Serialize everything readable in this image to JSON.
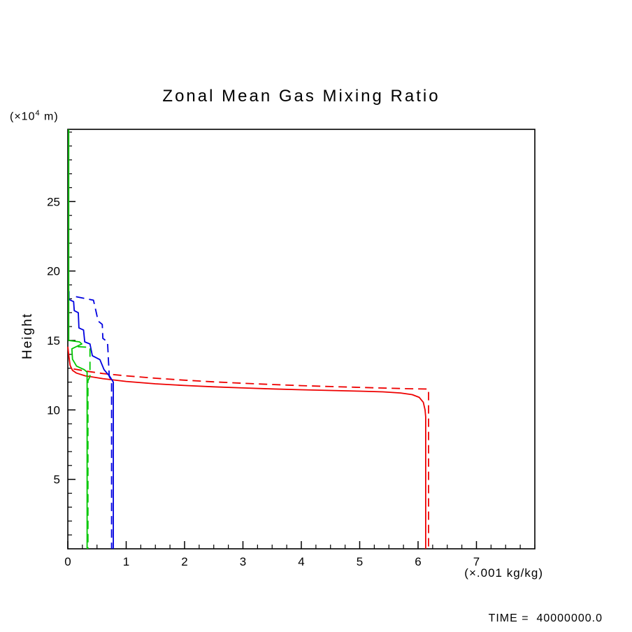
{
  "chart_data": {
    "type": "line",
    "title": "Zonal Mean Gas Mixing Ratio",
    "y_unit_prefix": "(×10",
    "y_unit_sup": "4",
    "y_unit_suffix": " m)",
    "ylabel": "Height",
    "xlabel": "(×.001 kg/kg)",
    "footer": "TIME =  40000000.0",
    "xlim": [
      0,
      8
    ],
    "ylim": [
      0,
      30.2
    ],
    "x_ticks": [
      0,
      1,
      2,
      3,
      4,
      5,
      6,
      7
    ],
    "y_ticks": [
      5,
      10,
      15,
      20,
      25
    ],
    "x_minor_step": 0.25,
    "y_minor_step": 1,
    "axis_color": "#000000",
    "legend": "none",
    "grid": false,
    "series": [
      {
        "name": "red-solid",
        "color": "#ee0000",
        "dash": "solid",
        "points": [
          [
            0.0,
            14.55
          ],
          [
            0.02,
            13.8
          ],
          [
            0.04,
            13.2
          ],
          [
            0.08,
            12.85
          ],
          [
            0.15,
            12.65
          ],
          [
            0.3,
            12.45
          ],
          [
            0.6,
            12.25
          ],
          [
            1.0,
            12.05
          ],
          [
            1.5,
            11.88
          ],
          [
            2.0,
            11.76
          ],
          [
            2.5,
            11.66
          ],
          [
            3.0,
            11.58
          ],
          [
            3.5,
            11.51
          ],
          [
            4.0,
            11.45
          ],
          [
            4.5,
            11.4
          ],
          [
            5.0,
            11.35
          ],
          [
            5.4,
            11.3
          ],
          [
            5.7,
            11.22
          ],
          [
            5.9,
            11.1
          ],
          [
            6.02,
            10.9
          ],
          [
            6.09,
            10.55
          ],
          [
            6.12,
            10.0
          ],
          [
            6.13,
            9.5
          ],
          [
            6.13,
            0.0
          ]
        ]
      },
      {
        "name": "red-dashed",
        "color": "#ee0000",
        "dash": "dashed",
        "points": [
          [
            0.1,
            12.95
          ],
          [
            0.3,
            12.8
          ],
          [
            0.6,
            12.62
          ],
          [
            1.0,
            12.45
          ],
          [
            1.5,
            12.28
          ],
          [
            2.0,
            12.14
          ],
          [
            2.5,
            12.02
          ],
          [
            3.0,
            11.92
          ],
          [
            3.5,
            11.83
          ],
          [
            4.0,
            11.75
          ],
          [
            4.5,
            11.68
          ],
          [
            5.0,
            11.62
          ],
          [
            5.5,
            11.56
          ],
          [
            5.9,
            11.52
          ],
          [
            6.18,
            11.5
          ],
          [
            6.18,
            0.0
          ]
        ]
      },
      {
        "name": "blue-solid",
        "color": "#0000e0",
        "dash": "solid",
        "points": [
          [
            0.02,
            18.55
          ],
          [
            0.02,
            17.95
          ],
          [
            0.1,
            17.8
          ],
          [
            0.11,
            17.15
          ],
          [
            0.18,
            17.0
          ],
          [
            0.19,
            15.9
          ],
          [
            0.27,
            15.75
          ],
          [
            0.29,
            14.9
          ],
          [
            0.38,
            14.75
          ],
          [
            0.42,
            13.9
          ],
          [
            0.55,
            13.62
          ],
          [
            0.62,
            12.9
          ],
          [
            0.72,
            12.4
          ],
          [
            0.78,
            12.0
          ],
          [
            0.78,
            0.0
          ]
        ]
      },
      {
        "name": "blue-dashed",
        "color": "#0000e0",
        "dash": "dashed",
        "points": [
          [
            0.14,
            18.15
          ],
          [
            0.44,
            17.9
          ],
          [
            0.48,
            17.15
          ],
          [
            0.52,
            16.4
          ],
          [
            0.59,
            16.15
          ],
          [
            0.6,
            15.15
          ],
          [
            0.68,
            14.9
          ],
          [
            0.71,
            12.4
          ],
          [
            0.75,
            12.1
          ],
          [
            0.75,
            0.0
          ]
        ]
      },
      {
        "name": "green-solid",
        "color": "#00c800",
        "dash": "solid",
        "points": [
          [
            0.015,
            30.2
          ],
          [
            0.015,
            15.0
          ],
          [
            0.2,
            14.9
          ],
          [
            0.24,
            14.75
          ],
          [
            0.07,
            14.4
          ],
          [
            0.08,
            13.65
          ],
          [
            0.15,
            13.15
          ],
          [
            0.28,
            12.9
          ],
          [
            0.33,
            12.72
          ],
          [
            0.33,
            0.0
          ]
        ]
      },
      {
        "name": "green-dashed",
        "color": "#00c800",
        "dash": "dashed",
        "points": [
          [
            0.17,
            14.55
          ],
          [
            0.38,
            14.5
          ],
          [
            0.38,
            12.4
          ],
          [
            0.345,
            12.1
          ],
          [
            0.345,
            0.0
          ]
        ]
      }
    ]
  }
}
